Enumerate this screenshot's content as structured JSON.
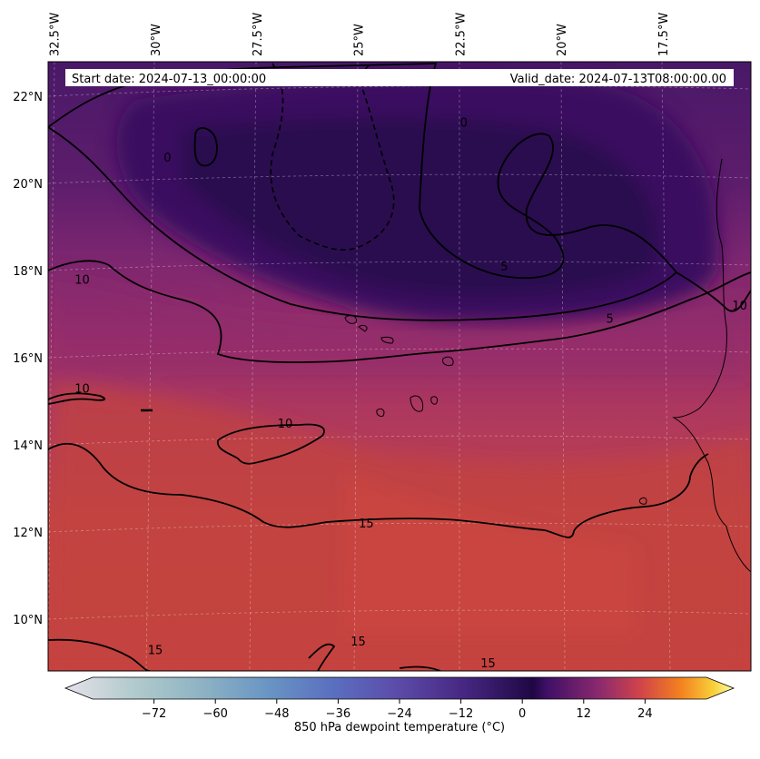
{
  "chart_data": {
    "type": "heatmap",
    "variable": "850 hPa dewpoint temperature",
    "units": "°C",
    "info": {
      "start_date": "Start date: 2024-07-13_00:00:00",
      "valid_date": "Valid_date: 2024-07-13T08:00:00.00"
    },
    "lon_labels": [
      {
        "value": -32.5,
        "label": "32.5°W"
      },
      {
        "value": -30.0,
        "label": "30°W"
      },
      {
        "value": -27.5,
        "label": "27.5°W"
      },
      {
        "value": -25.0,
        "label": "25°W"
      },
      {
        "value": -22.5,
        "label": "22.5°W"
      },
      {
        "value": -20.0,
        "label": "20°W"
      },
      {
        "value": -17.5,
        "label": "17.5°W"
      }
    ],
    "lat_labels": [
      {
        "value": 22,
        "label": "22°N"
      },
      {
        "value": 20,
        "label": "20°N"
      },
      {
        "value": 18,
        "label": "18°N"
      },
      {
        "value": 16,
        "label": "16°N"
      },
      {
        "value": 14,
        "label": "14°N"
      },
      {
        "value": 12,
        "label": "12°N"
      },
      {
        "value": 10,
        "label": "10°N"
      }
    ],
    "contour_labels": [
      {
        "text": "10",
        "lon": -31.8,
        "lat": 17.7
      },
      {
        "text": "10",
        "lon": -31.8,
        "lat": 15.2
      },
      {
        "text": "10",
        "lon": -26.8,
        "lat": 14.4
      },
      {
        "text": "0",
        "lon": -29.7,
        "lat": 20.5
      },
      {
        "text": "0",
        "lon": -22.4,
        "lat": 21.3
      },
      {
        "text": "5",
        "lon": -21.4,
        "lat": 18.0
      },
      {
        "text": "5",
        "lon": -18.8,
        "lat": 16.8
      },
      {
        "text": "10",
        "lon": -15.6,
        "lat": 17.1
      },
      {
        "text": "15",
        "lon": -24.8,
        "lat": 12.1
      },
      {
        "text": "15",
        "lon": -30.0,
        "lat": 9.2
      },
      {
        "text": "15",
        "lon": -25.0,
        "lat": 9.4
      },
      {
        "text": "15",
        "lon": -21.8,
        "lat": 8.9
      }
    ],
    "colorbar": {
      "label": "850 hPa dewpoint temperature ($^\\circ$C)",
      "label_display": "850 hPa dewpoint temperature (°C)",
      "range": [
        -84,
        36
      ],
      "ticks": [
        -72,
        -60,
        -48,
        -36,
        -24,
        -12,
        0,
        12,
        24
      ],
      "extend": "both"
    },
    "colors": {
      "driest": "#e8e4ec",
      "zero": "#2b0c4e",
      "moist": "#c8403e",
      "wettest": "#fcffa4"
    }
  }
}
